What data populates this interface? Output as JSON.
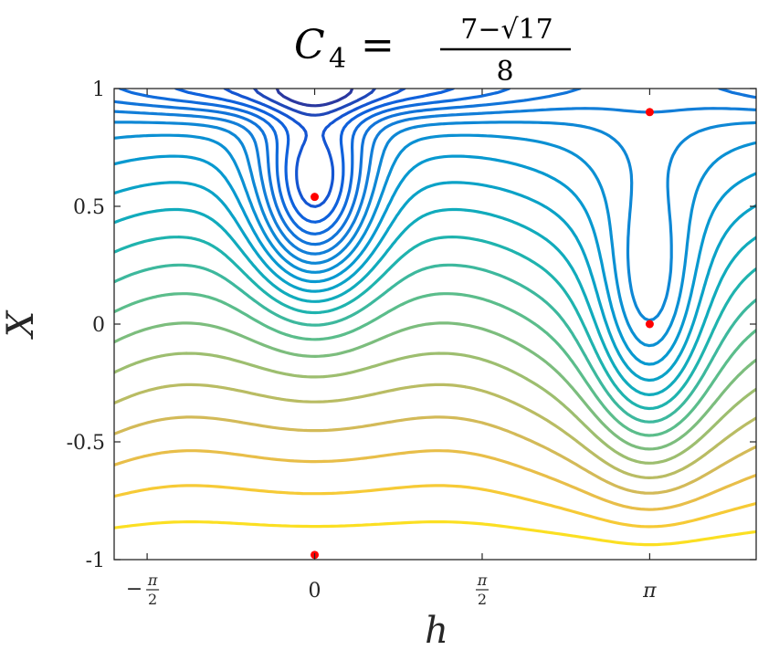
{
  "chart_data": {
    "type": "contour",
    "title": {
      "lhs": "C",
      "subscript": "4",
      "equals": "=",
      "numerator": "7−√17",
      "denominator": "8"
    },
    "xlabel": "h",
    "ylabel": "X",
    "xlim": [
      -2.0,
      2.0
    ],
    "xlim_note": "in units of rad: approximately [-1.88, 4.14]",
    "ylim": [
      -1,
      1
    ],
    "x_ticks": [
      {
        "value": -1.5708,
        "label": "−π/2",
        "num": "π",
        "den": "2",
        "sign": "−"
      },
      {
        "value": 0,
        "label": "0"
      },
      {
        "value": 1.5708,
        "label": "π/2",
        "num": "π",
        "den": "2",
        "sign": ""
      },
      {
        "value": 3.1416,
        "label": "π"
      }
    ],
    "y_ticks": [
      {
        "value": 1,
        "label": "1"
      },
      {
        "value": 0.5,
        "label": "0.5"
      },
      {
        "value": 0,
        "label": "0"
      },
      {
        "value": -0.5,
        "label": "-0.5"
      },
      {
        "value": -1,
        "label": "-1"
      }
    ],
    "x_range": [
      -1.88,
      4.14
    ],
    "colormap": "parula",
    "grid": false,
    "fixed_points": [
      {
        "x": 0,
        "y": 0.54
      },
      {
        "x": 3.1416,
        "y": 0.0
      },
      {
        "x": 3.1416,
        "y": 0.9
      },
      {
        "x": 0,
        "y": -0.98
      }
    ],
    "fixed_point_color": "#ff0000"
  }
}
